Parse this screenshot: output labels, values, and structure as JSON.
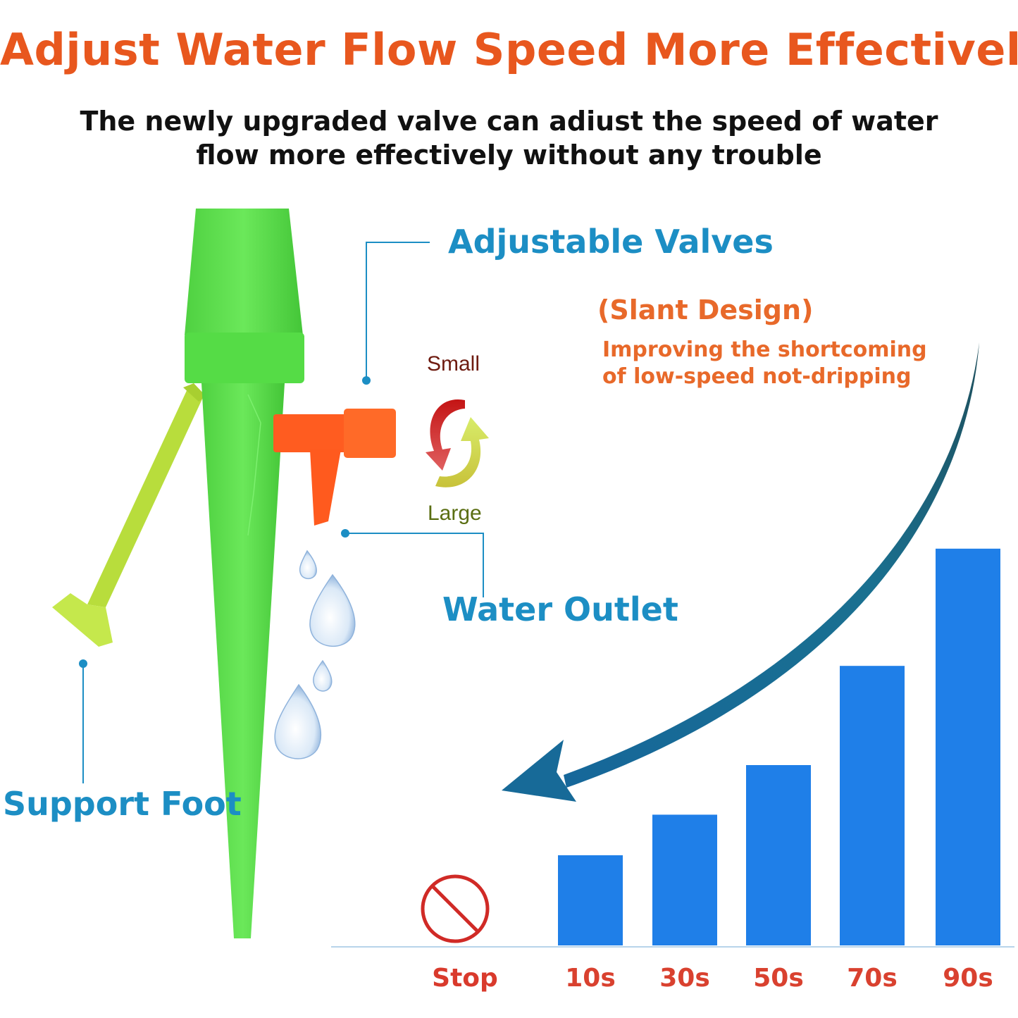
{
  "headline": "Adjust Water Flow Speed More Effectively",
  "subtitle": {
    "line1": "The newly upgraded valve can adiust the speed of water",
    "line2": "flow more effectively without any trouble"
  },
  "callouts": {
    "valves": "Adjustable Valves",
    "outlet": "Water Outlet",
    "foot": "Support Foot"
  },
  "slant": {
    "title": "(Slant Design)",
    "line1": "Improving the shortcoming",
    "line2": "of low-speed not-dripping"
  },
  "direction": {
    "small": "Small",
    "large": "Large"
  },
  "chart_data": {
    "type": "bar",
    "categories": [
      "Stop",
      "10s",
      "30s",
      "50s",
      "70s",
      "90s"
    ],
    "values": [
      0,
      1.0,
      1.45,
      2.0,
      3.1,
      4.4
    ]
  },
  "colors": {
    "headline": "#e8571e",
    "subtitle": "#111111",
    "callout": "#1c8ec4",
    "slant": "#e8692a",
    "bar": "#1f7fe8",
    "stop_label": "#d93a2c",
    "time_label": "#d9412f",
    "stop_icon": "#d02a26",
    "spike_green": "#58e04a",
    "valve_orange": "#ff5a1e",
    "foot_yellow": "#bfe34a",
    "curve_arrow": "#1a6b96",
    "small_label": "#6e1b10",
    "large_label": "#5a6e12"
  },
  "icons": [
    "no-entry-icon",
    "rotate-arrows-icon",
    "water-drop-icon",
    "curved-arrow-icon"
  ]
}
